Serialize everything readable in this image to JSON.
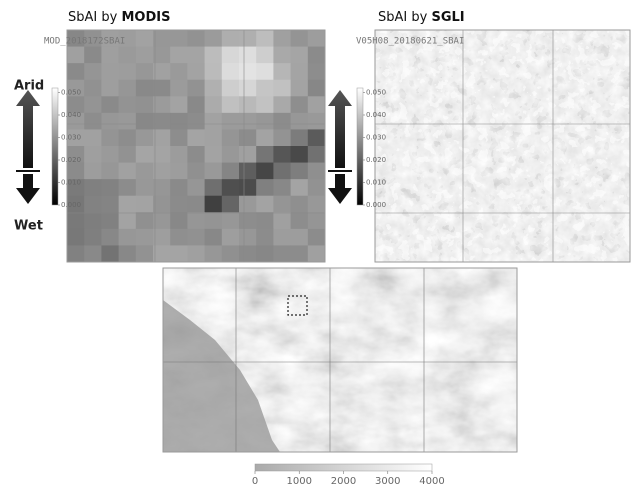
{
  "panels": [
    {
      "title": "SbAI by ",
      "title_emph": "MODIS",
      "subtitle": "MOD_2018172SBAI",
      "colorbar": {
        "lim": [
          0,
          0.052
        ],
        "ticks": [
          {
            "value": 0.05,
            "label": "0.050"
          },
          {
            "value": 0.04,
            "label": "0.040"
          },
          {
            "value": 0.03,
            "label": "0.030"
          },
          {
            "value": 0.02,
            "label": "0.020"
          },
          {
            "value": 0.01,
            "label": "0.010"
          },
          {
            "value": 0,
            "label": "0.000"
          }
        ]
      }
    },
    {
      "title": "SbAI by ",
      "title_emph": "SGLI",
      "subtitle": "V05H08_20180621_SBAI",
      "colorbar": {
        "lim": [
          0,
          0.052
        ],
        "ticks": [
          {
            "value": 0.05,
            "label": "0.050"
          },
          {
            "value": 0.04,
            "label": "0.040"
          },
          {
            "value": 0.03,
            "label": "0.030"
          },
          {
            "value": 0.02,
            "label": "0.020"
          },
          {
            "value": 0.01,
            "label": "0.010"
          },
          {
            "value": 0,
            "label": "0.000"
          }
        ]
      }
    }
  ],
  "arrow": {
    "top": "Arid",
    "bottom": "Wet"
  },
  "elevation_colorbar": {
    "lim": [
      0,
      4000
    ],
    "ticks": [
      0,
      1000,
      2000,
      3000,
      4000
    ]
  }
}
